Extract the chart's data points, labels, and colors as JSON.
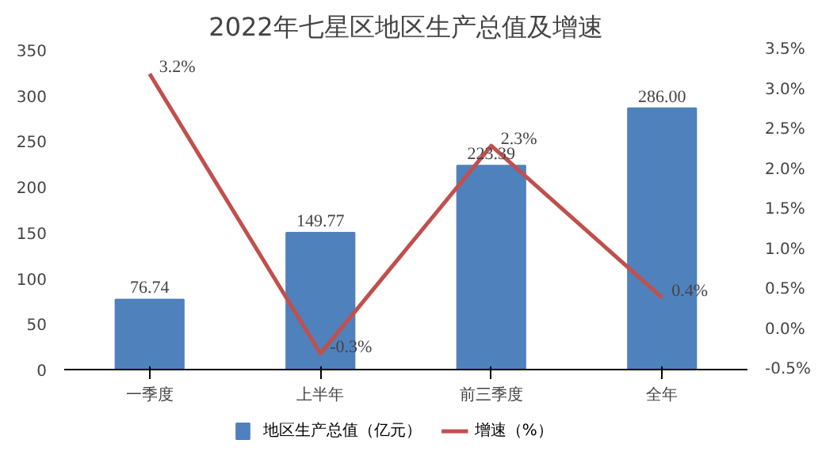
{
  "chart_data": {
    "type": "bar",
    "title": "2022年七星区地区生产总值及增速",
    "categories": [
      "一季度",
      "上半年",
      "前三季度",
      "全年"
    ],
    "series": [
      {
        "name": "地区生产总值（亿元）",
        "color": "#4f81bd",
        "values": [
          76.74,
          149.77,
          223.39,
          286.0
        ],
        "value_labels": [
          "76.74",
          "149.77",
          "223.39",
          "286.00"
        ]
      },
      {
        "name": "增速（%）",
        "type": "line",
        "axis": "y2",
        "color": "#c0504d",
        "values": [
          3.2,
          -0.3,
          2.3,
          0.4
        ],
        "value_labels": [
          "3.2%",
          "-0.3%",
          "2.3%",
          "0.4%"
        ]
      }
    ],
    "ylim": [
      0,
      350
    ],
    "yticks": [
      0,
      50,
      100,
      150,
      200,
      250,
      300,
      350
    ],
    "y2lim": [
      -0.5,
      3.5
    ],
    "y2ticks": [
      {
        "value": -0.5,
        "label": "-0.5%"
      },
      {
        "value": 0,
        "label": "0.0%"
      },
      {
        "value": 0.5,
        "label": "0.5%"
      },
      {
        "value": 1,
        "label": "1.0%"
      },
      {
        "value": 1.5,
        "label": "1.5%"
      },
      {
        "value": 2,
        "label": "2.0%"
      },
      {
        "value": 2.5,
        "label": "2.5%"
      },
      {
        "value": 3,
        "label": "3.0%"
      },
      {
        "value": 3.5,
        "label": "3.5%"
      }
    ],
    "grid": false,
    "legend": "bottom",
    "marker": "none",
    "line_style": "solid"
  }
}
